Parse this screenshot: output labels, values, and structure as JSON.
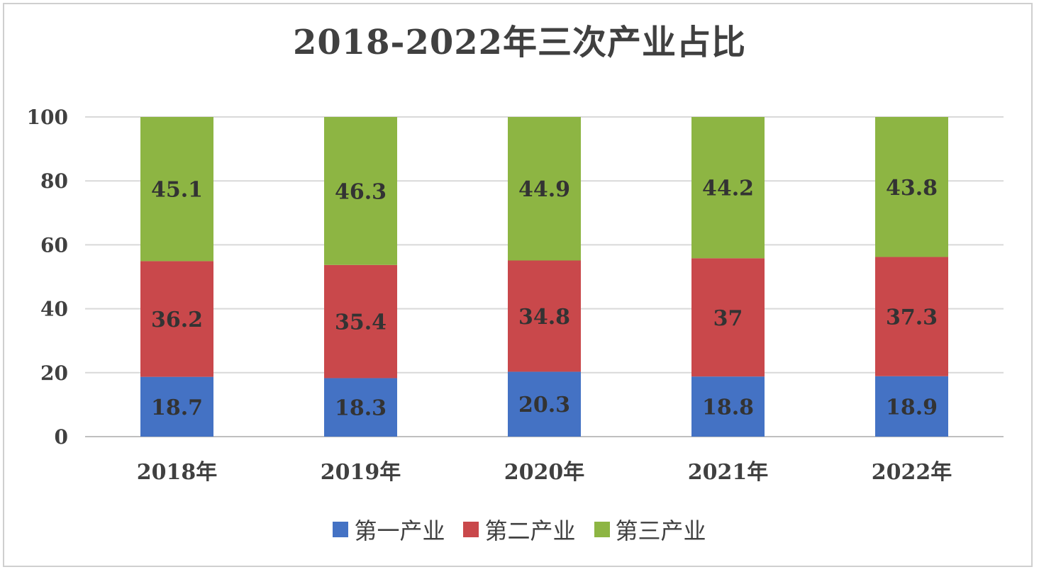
{
  "colors": {
    "primary": "#4472c4",
    "secondary": "#c9484b",
    "tertiary": "#8db543",
    "grid": "#d9d9d9",
    "text": "#404040"
  },
  "chart_data": {
    "type": "bar",
    "stacked": true,
    "title": "2018-2022年三次产业占比",
    "xlabel": "",
    "ylabel": "",
    "ylim": [
      0,
      100
    ],
    "yticks": [
      0,
      20,
      40,
      60,
      80,
      100
    ],
    "grid": true,
    "legend_position": "bottom",
    "categories": [
      "2018年",
      "2019年",
      "2020年",
      "2021年",
      "2022年"
    ],
    "series": [
      {
        "name": "第一产业",
        "color": "#4472c4",
        "values": [
          18.7,
          18.3,
          20.3,
          18.8,
          18.9
        ]
      },
      {
        "name": "第二产业",
        "color": "#c9484b",
        "values": [
          36.2,
          35.4,
          34.8,
          37,
          37.3
        ]
      },
      {
        "name": "第三产业",
        "color": "#8db543",
        "values": [
          45.1,
          46.3,
          44.9,
          44.2,
          43.8
        ]
      }
    ]
  }
}
